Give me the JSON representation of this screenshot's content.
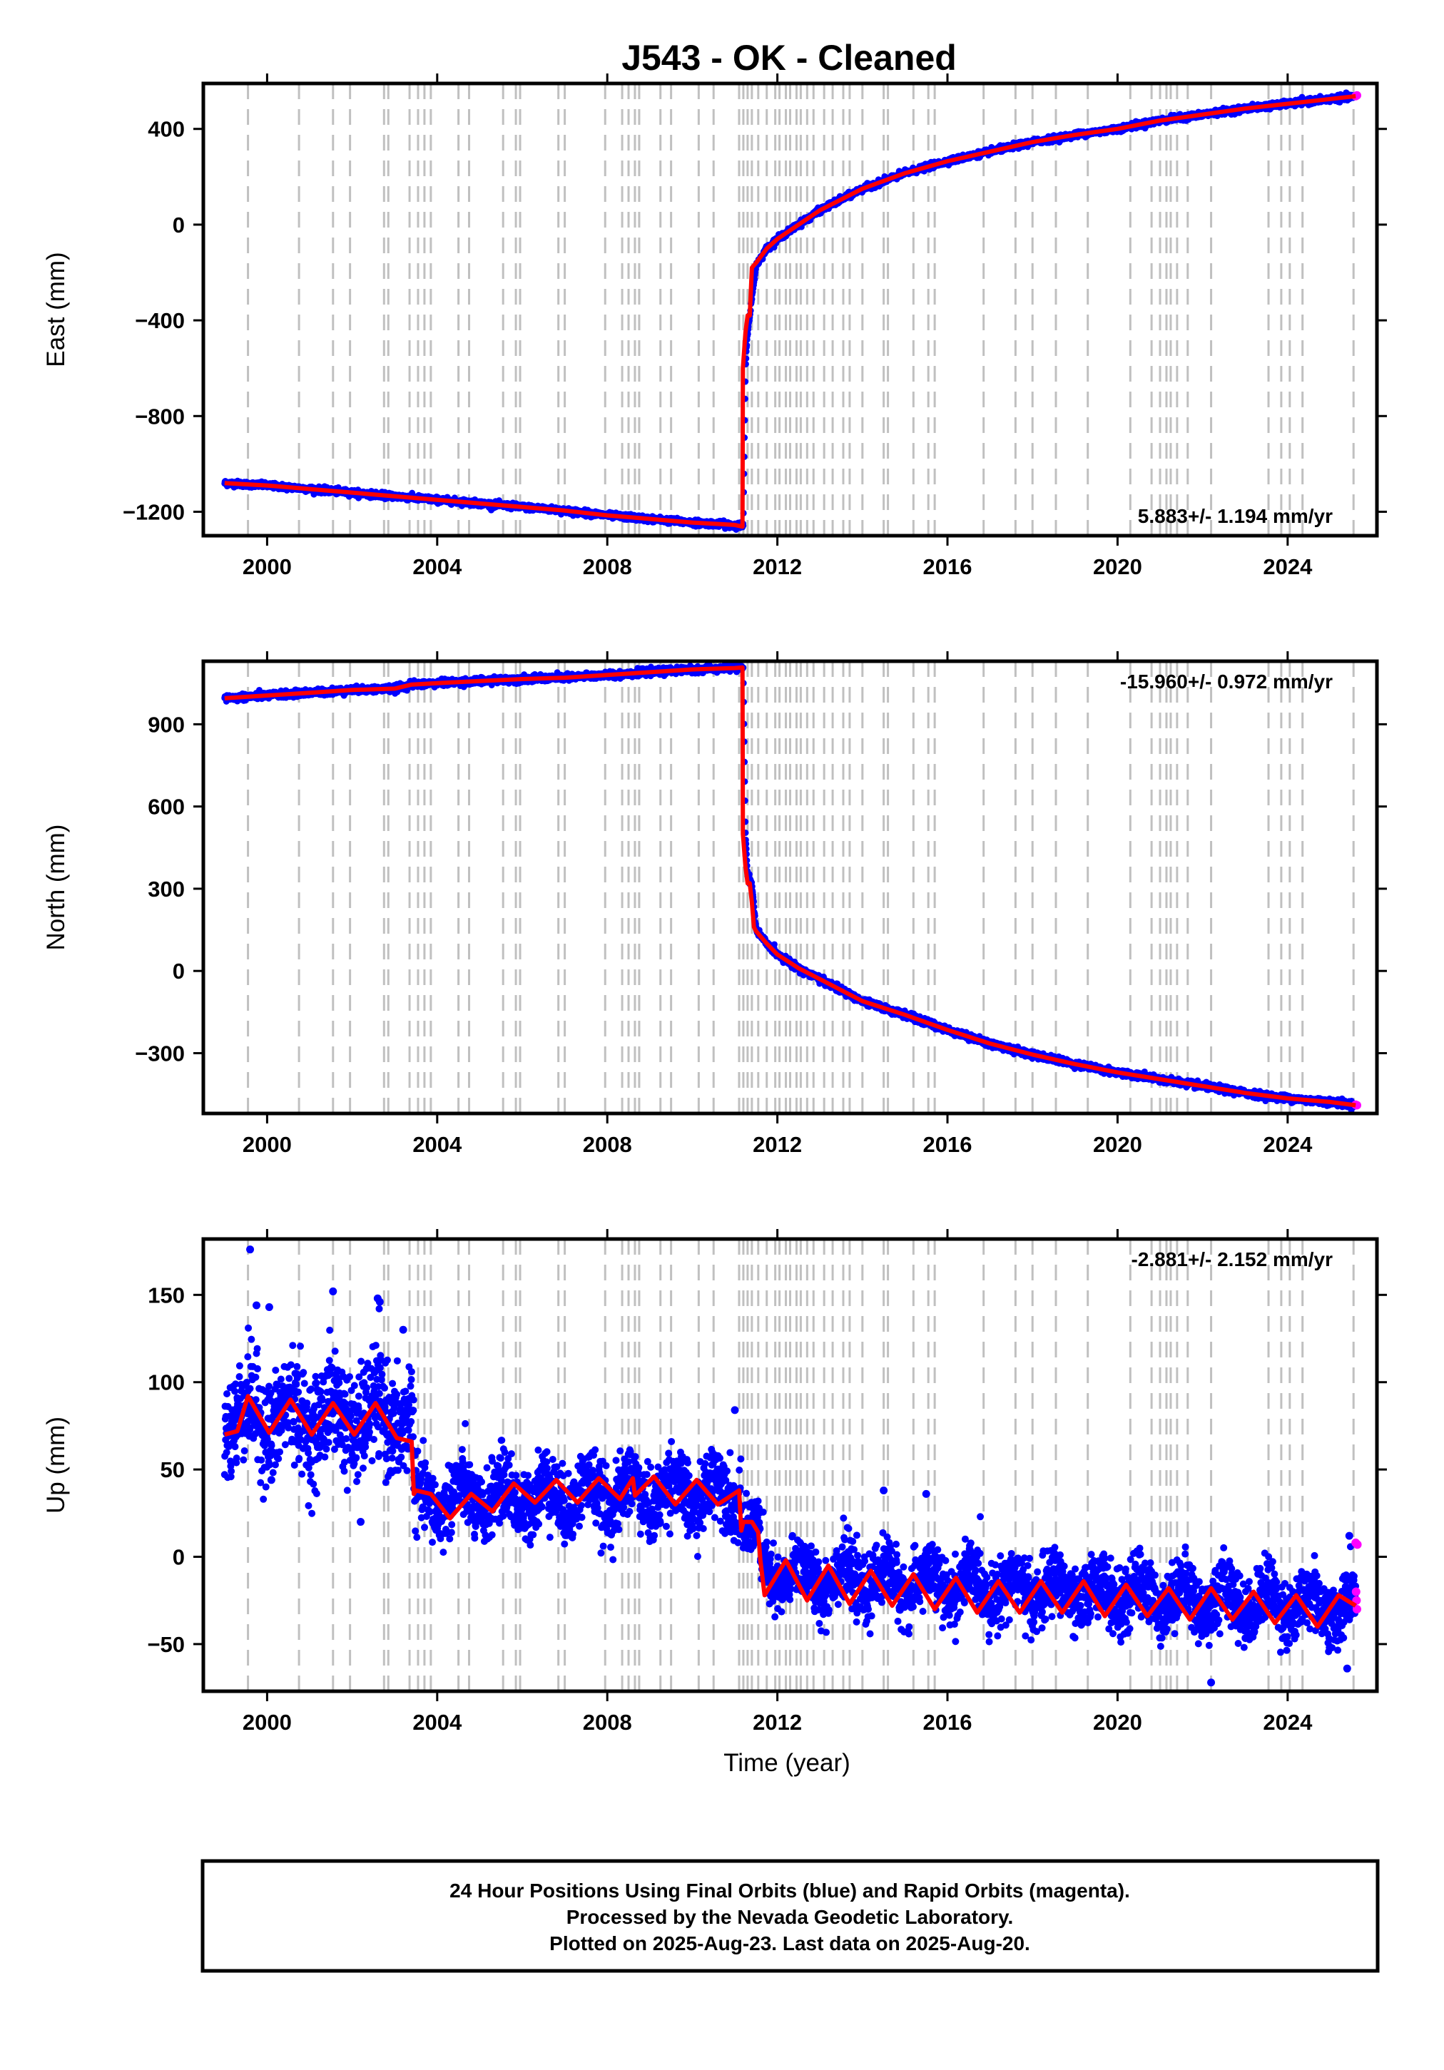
{
  "page_title": "J543  - OK - Cleaned",
  "caption": {
    "lines": [
      "24 Hour Positions Using Final Orbits (blue) and Rapid Orbits (magenta).",
      "Processed by the Nevada Geodetic Laboratory.",
      "Plotted on 2025-Aug-23. Last data on 2025-Aug-20."
    ]
  },
  "colors": {
    "final_orbits": "#0000ff",
    "rapid_orbits": "#ff00ff",
    "model": "#ff0000",
    "event_lines": "#c0c0c0",
    "frame": "#000000"
  },
  "event_lines_years": [
    1999.55,
    2000.75,
    2001.55,
    2001.95,
    2002.75,
    2002.85,
    2003.35,
    2003.55,
    2003.7,
    2003.85,
    2004.5,
    2004.75,
    2005.55,
    2005.85,
    2005.95,
    2006.85,
    2007.0,
    2007.95,
    2008.35,
    2008.5,
    2008.65,
    2008.75,
    2009.25,
    2009.5,
    2010.15,
    2010.5,
    2011.1,
    2011.2,
    2011.3,
    2011.4,
    2011.55,
    2011.75,
    2011.95,
    2012.05,
    2012.2,
    2012.3,
    2012.45,
    2012.55,
    2012.7,
    2012.85,
    2013.1,
    2013.3,
    2013.55,
    2013.7,
    2014.0,
    2014.5,
    2014.6,
    2015.2,
    2015.55,
    2015.7,
    2016.85,
    2017.6,
    2018.0,
    2018.55,
    2019.3,
    2020.3,
    2020.8,
    2021.0,
    2021.15,
    2021.25,
    2021.4,
    2021.65,
    2022.2,
    2023.55,
    2023.85,
    2024.05,
    2024.35,
    2025.55
  ],
  "chart_data": [
    {
      "type": "scatter",
      "name": "east",
      "ylabel": "East (mm)",
      "xlim": [
        1998.5,
        2026.1
      ],
      "ylim": [
        -1300,
        590
      ],
      "yticks": [
        -1200,
        -800,
        -400,
        0,
        400
      ],
      "ytick_labels": [
        "−1200",
        "−800",
        "−400",
        "0",
        "400"
      ],
      "xticks": [
        2000,
        2004,
        2008,
        2012,
        2016,
        2020,
        2024
      ],
      "rate_label": "5.883+/- 1.194 mm/yr",
      "rate_position": "bottom-right",
      "series": [
        {
          "name": "Final Orbits",
          "color": "#0000ff",
          "x": [
            1999.0,
            2000.0,
            2001.0,
            2002.0,
            2003.0,
            2004.0,
            2005.0,
            2006.0,
            2007.0,
            2008.0,
            2009.0,
            2010.0,
            2011.0,
            2011.2,
            2011.25,
            2011.3,
            2011.35,
            2011.5,
            2011.75,
            2012.0,
            2012.5,
            2013.0,
            2014.0,
            2015.0,
            2016.0,
            2017.0,
            2018.0,
            2019.0,
            2020.0,
            2021.0,
            2022.0,
            2023.0,
            2024.0,
            2025.0,
            2025.55
          ],
          "y": [
            -1080,
            -1090,
            -1105,
            -1120,
            -1135,
            -1150,
            -1165,
            -1180,
            -1195,
            -1215,
            -1230,
            -1245,
            -1255,
            -1260,
            -600,
            -450,
            -380,
            -170,
            -100,
            -60,
            0,
            60,
            150,
            215,
            265,
            305,
            345,
            375,
            400,
            435,
            460,
            485,
            505,
            525,
            535
          ]
        },
        {
          "name": "Rapid Orbits",
          "color": "#ff00ff",
          "x": [
            2025.6,
            2025.63
          ],
          "y": [
            537,
            540
          ]
        }
      ],
      "model": {
        "name": "Model",
        "color": "#ff0000",
        "x": [
          1999.0,
          2000.0,
          2001.0,
          2002.0,
          2003.0,
          2004.0,
          2005.0,
          2006.0,
          2007.0,
          2008.0,
          2009.0,
          2010.0,
          2011.0,
          2011.18,
          2011.19,
          2011.25,
          2011.3,
          2011.35,
          2011.4,
          2011.45,
          2011.5,
          2011.75,
          2012.0,
          2012.5,
          2013.0,
          2014.0,
          2015.0,
          2016.0,
          2017.0,
          2018.0,
          2019.0,
          2020.0,
          2021.0,
          2022.0,
          2023.0,
          2024.0,
          2025.0,
          2025.6
        ],
        "y": [
          -1080,
          -1090,
          -1105,
          -1120,
          -1135,
          -1150,
          -1165,
          -1180,
          -1195,
          -1215,
          -1230,
          -1245,
          -1255,
          -1262,
          -600,
          -450,
          -380,
          -380,
          -180,
          -170,
          -160,
          -100,
          -60,
          0,
          60,
          150,
          215,
          265,
          305,
          345,
          375,
          400,
          435,
          460,
          485,
          505,
          525,
          537
        ]
      }
    },
    {
      "type": "scatter",
      "name": "north",
      "ylabel": "North (mm)",
      "xlim": [
        1998.5,
        2026.1
      ],
      "ylim": [
        -520,
        1130
      ],
      "yticks": [
        -300,
        0,
        300,
        600,
        900
      ],
      "ytick_labels": [
        "−300",
        "0",
        "300",
        "600",
        "900"
      ],
      "xticks": [
        2000,
        2004,
        2008,
        2012,
        2016,
        2020,
        2024
      ],
      "rate_label": "-15.960+/- 0.972 mm/yr",
      "rate_position": "top-right",
      "series": [
        {
          "name": "Final Orbits",
          "color": "#0000ff",
          "x": [
            1999.0,
            2000.0,
            2001.0,
            2002.0,
            2003.0,
            2003.4,
            2004.0,
            2005.0,
            2006.0,
            2007.0,
            2008.0,
            2009.0,
            2010.0,
            2011.0,
            2011.2,
            2011.25,
            2011.3,
            2011.4,
            2011.5,
            2011.75,
            2012.0,
            2012.5,
            2013.0,
            2014.0,
            2015.0,
            2016.0,
            2017.0,
            2018.0,
            2019.0,
            2020.0,
            2021.0,
            2022.0,
            2023.0,
            2024.0,
            2025.0,
            2025.55
          ],
          "y": [
            995,
            1005,
            1015,
            1025,
            1030,
            1045,
            1050,
            1058,
            1065,
            1070,
            1080,
            1090,
            1100,
            1105,
            1105,
            500,
            350,
            320,
            150,
            100,
            60,
            10,
            -30,
            -110,
            -160,
            -215,
            -265,
            -305,
            -340,
            -370,
            -395,
            -420,
            -445,
            -465,
            -478,
            -488
          ]
        },
        {
          "name": "Rapid Orbits",
          "color": "#ff00ff",
          "x": [
            2025.6,
            2025.63
          ],
          "y": [
            -488,
            -490
          ]
        }
      ],
      "model": {
        "name": "Model",
        "color": "#ff0000",
        "x": [
          1999.0,
          2000.0,
          2001.0,
          2002.0,
          2003.0,
          2003.4,
          2004.0,
          2005.0,
          2006.0,
          2007.0,
          2008.0,
          2009.0,
          2010.0,
          2011.0,
          2011.18,
          2011.19,
          2011.25,
          2011.3,
          2011.35,
          2011.4,
          2011.45,
          2011.5,
          2011.75,
          2012.0,
          2012.5,
          2013.0,
          2014.0,
          2015.0,
          2016.0,
          2017.0,
          2018.0,
          2019.0,
          2020.0,
          2021.0,
          2022.0,
          2023.0,
          2024.0,
          2025.0,
          2025.6
        ],
        "y": [
          995,
          1005,
          1015,
          1025,
          1030,
          1045,
          1050,
          1058,
          1065,
          1070,
          1080,
          1090,
          1100,
          1105,
          1107,
          500,
          380,
          320,
          320,
          250,
          160,
          145,
          100,
          60,
          10,
          -30,
          -110,
          -160,
          -215,
          -265,
          -305,
          -340,
          -370,
          -395,
          -420,
          -445,
          -465,
          -478,
          -490
        ]
      }
    },
    {
      "type": "scatter",
      "name": "up",
      "ylabel": "Up (mm)",
      "xlabel": "Time (year)",
      "xlim": [
        1998.5,
        2026.1
      ],
      "ylim": [
        -77,
        182
      ],
      "yticks": [
        -50,
        0,
        50,
        100,
        150
      ],
      "ytick_labels": [
        "−50",
        "0",
        "50",
        "100",
        "150"
      ],
      "xticks": [
        2000,
        2004,
        2008,
        2012,
        2016,
        2020,
        2024
      ],
      "rate_label": "-2.881+/- 2.152 mm/yr",
      "rate_position": "top-right",
      "segments": [
        {
          "x0": 1999.0,
          "x1": 2003.45,
          "mean": 80,
          "trend": 0,
          "amp": 10,
          "spread": 15
        },
        {
          "x0": 2003.45,
          "x1": 2003.85,
          "mean": 34,
          "trend": 0,
          "amp": 4,
          "spread": 9
        },
        {
          "x0": 2003.85,
          "x1": 2011.15,
          "mean": 33,
          "trend": 0.6,
          "amp": 9,
          "spread": 10
        },
        {
          "x0": 2011.15,
          "x1": 2011.6,
          "mean": 17,
          "trend": 0,
          "amp": 3,
          "spread": 8
        },
        {
          "x0": 2011.6,
          "x1": 2025.6,
          "mean": -10,
          "trend": -1.35,
          "amp": 8,
          "spread": 9
        }
      ],
      "outliers": {
        "x": [
          1999.6,
          1999.75,
          2001.55,
          2002.6,
          2002.65,
          2011.0,
          2002.2,
          2000.1,
          2014.5,
          2015.5,
          2022.2,
          2025.4,
          2025.45,
          2000.05,
          2003.2
        ],
        "y": [
          176,
          144,
          152,
          148,
          146,
          84,
          20,
          44,
          38,
          36,
          -72,
          -64,
          12,
          143,
          130
        ]
      },
      "rapid": {
        "x": [
          2025.6,
          2025.61,
          2025.62,
          2025.63,
          2025.64
        ],
        "y": [
          8,
          -20,
          -25,
          -30,
          7
        ]
      },
      "model_points": {
        "x": [
          1999.0,
          1999.3,
          1999.55,
          2000.05,
          2000.55,
          2001.05,
          2001.55,
          2002.05,
          2002.55,
          2003.05,
          2003.4,
          2003.45,
          2003.5,
          2003.85,
          2004.3,
          2004.8,
          2005.3,
          2005.8,
          2006.3,
          2006.8,
          2007.3,
          2007.8,
          2008.3,
          2008.6,
          2008.65,
          2009.1,
          2009.6,
          2010.1,
          2010.6,
          2011.1,
          2011.15,
          2011.2,
          2011.4,
          2011.55,
          2011.6,
          2011.7,
          2012.2,
          2012.7,
          2013.2,
          2013.7,
          2014.2,
          2014.7,
          2015.2,
          2015.7,
          2016.2,
          2016.7,
          2017.2,
          2017.7,
          2018.2,
          2018.7,
          2019.2,
          2019.7,
          2020.2,
          2020.7,
          2021.2,
          2021.7,
          2022.2,
          2022.7,
          2023.2,
          2023.7,
          2024.2,
          2024.7,
          2025.2,
          2025.6
        ],
        "y": [
          70,
          72,
          92,
          71,
          90,
          70,
          88,
          70,
          88,
          68,
          66,
          36,
          38,
          36,
          22,
          36,
          26,
          42,
          31,
          44,
          31,
          45,
          33,
          45,
          35,
          46,
          30,
          44,
          30,
          38,
          15,
          20,
          20,
          14,
          -2,
          -22,
          -2,
          -25,
          -5,
          -27,
          -8,
          -28,
          -10,
          -30,
          -12,
          -32,
          -14,
          -32,
          -14,
          -32,
          -14,
          -34,
          -16,
          -34,
          -18,
          -36,
          -18,
          -36,
          -20,
          -38,
          -22,
          -40,
          -22,
          -28
        ]
      }
    }
  ]
}
